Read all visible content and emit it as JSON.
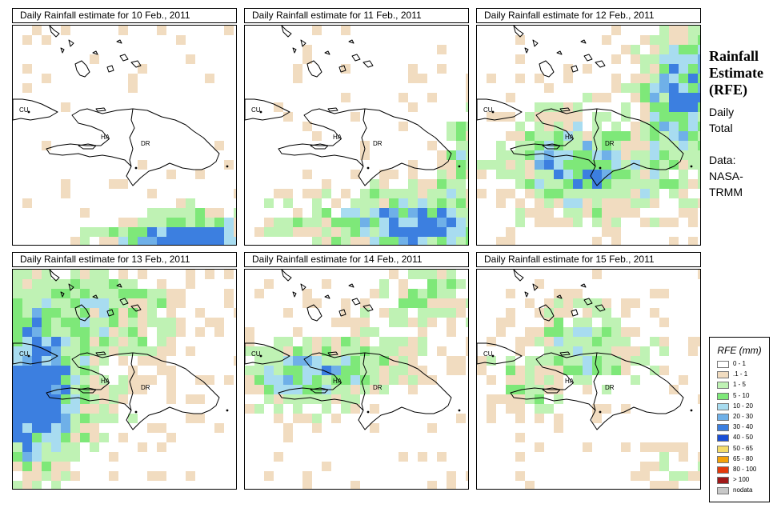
{
  "sidebar": {
    "title_line1": "Rainfall",
    "title_line2": "Estimate",
    "title_line3": "(RFE)",
    "period_line1": "Daily",
    "period_line2": "Total",
    "source_line1": "Data:",
    "source_line2": "NASA-",
    "source_line3": "TRMM"
  },
  "map_labels": {
    "cuba": "CU",
    "haiti": "HA",
    "dominican_republic": "DR"
  },
  "panels": [
    {
      "title": "Daily Rainfall estimate for  10 Feb., 2011"
    },
    {
      "title": "Daily Rainfall estimate for  11 Feb., 2011"
    },
    {
      "title": "Daily Rainfall estimate for  12 Feb., 2011"
    },
    {
      "title": "Daily Rainfall estimate for  13 Feb., 2011"
    },
    {
      "title": "Daily Rainfall estimate for  14 Feb., 2011"
    },
    {
      "title": "Daily Rainfall estimate for  15 Feb., 2011"
    }
  ],
  "legend": {
    "title": "RFE (mm)",
    "items": [
      {
        "label": "0 - 1",
        "color": "#ffffff"
      },
      {
        "label": ".1 - 1",
        "color": "#f1dcc0"
      },
      {
        "label": "1 - 5",
        "color": "#bff2b4"
      },
      {
        "label": "5 - 10",
        "color": "#7ee879"
      },
      {
        "label": "10 - 20",
        "color": "#a8dcf0"
      },
      {
        "label": "20 - 30",
        "color": "#6fb0e8"
      },
      {
        "label": "30 - 40",
        "color": "#3c7fe0"
      },
      {
        "label": "40 - 50",
        "color": "#1a4fd6"
      },
      {
        "label": "50 - 65",
        "color": "#f4dc6a"
      },
      {
        "label": "65 - 80",
        "color": "#f4a20a"
      },
      {
        "label": "80 - 100",
        "color": "#e43a0c"
      },
      {
        "label": "> 100",
        "color": "#a01818"
      },
      {
        "label": "nodata",
        "color": "#c8c8c8"
      }
    ]
  }
}
